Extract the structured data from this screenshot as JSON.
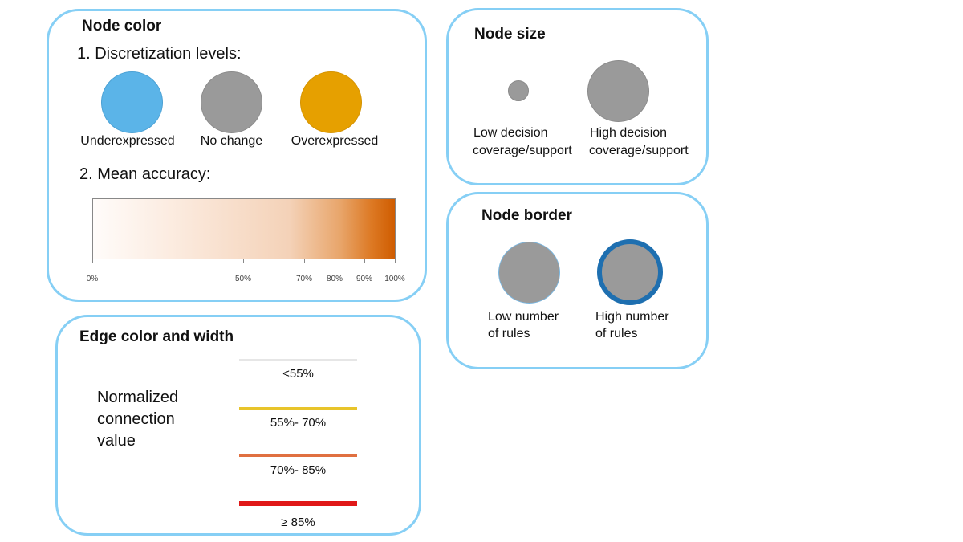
{
  "colors": {
    "panel_border": "#86cff5",
    "underexpressed": "#5bb4e8",
    "no_change": "#9a9a9a",
    "overexpressed": "#e6a000",
    "border_high": "#1e6fb0",
    "border_low": "#79b6e0",
    "edge_lt55": "#e6e6e6",
    "edge_55_70": "#e8c42a",
    "edge_70_85": "#e07040",
    "edge_ge85": "#e01818"
  },
  "node_color": {
    "title": "Node color",
    "discretization_heading": "1. Discretization levels:",
    "levels": [
      {
        "label": "Underexpressed"
      },
      {
        "label": "No change"
      },
      {
        "label": "Overexpressed"
      }
    ],
    "accuracy_heading": "2. Mean accuracy:",
    "accuracy_ticks": [
      {
        "label": "0%",
        "value": 0
      },
      {
        "label": "50%",
        "value": 50
      },
      {
        "label": "70%",
        "value": 70
      },
      {
        "label": "80%",
        "value": 80
      },
      {
        "label": "90%",
        "value": 90
      },
      {
        "label": "100%",
        "value": 100
      }
    ]
  },
  "node_size": {
    "title": "Node size",
    "low_line1": "Low decision",
    "low_line2": "coverage/support",
    "high_line1": "High decision",
    "high_line2": "coverage/support"
  },
  "node_border": {
    "title": "Node border",
    "low_line1": "Low number",
    "low_line2": "of rules",
    "high_line1": "High number",
    "high_line2": "of rules"
  },
  "edge": {
    "title": "Edge color and width",
    "desc_line1": "Normalized",
    "desc_line2": "connection",
    "desc_line3": "value",
    "levels": [
      {
        "label": "<55%"
      },
      {
        "label": "55%- 70%"
      },
      {
        "label": "70%- 85%"
      },
      {
        "label": "≥ 85%"
      }
    ]
  }
}
